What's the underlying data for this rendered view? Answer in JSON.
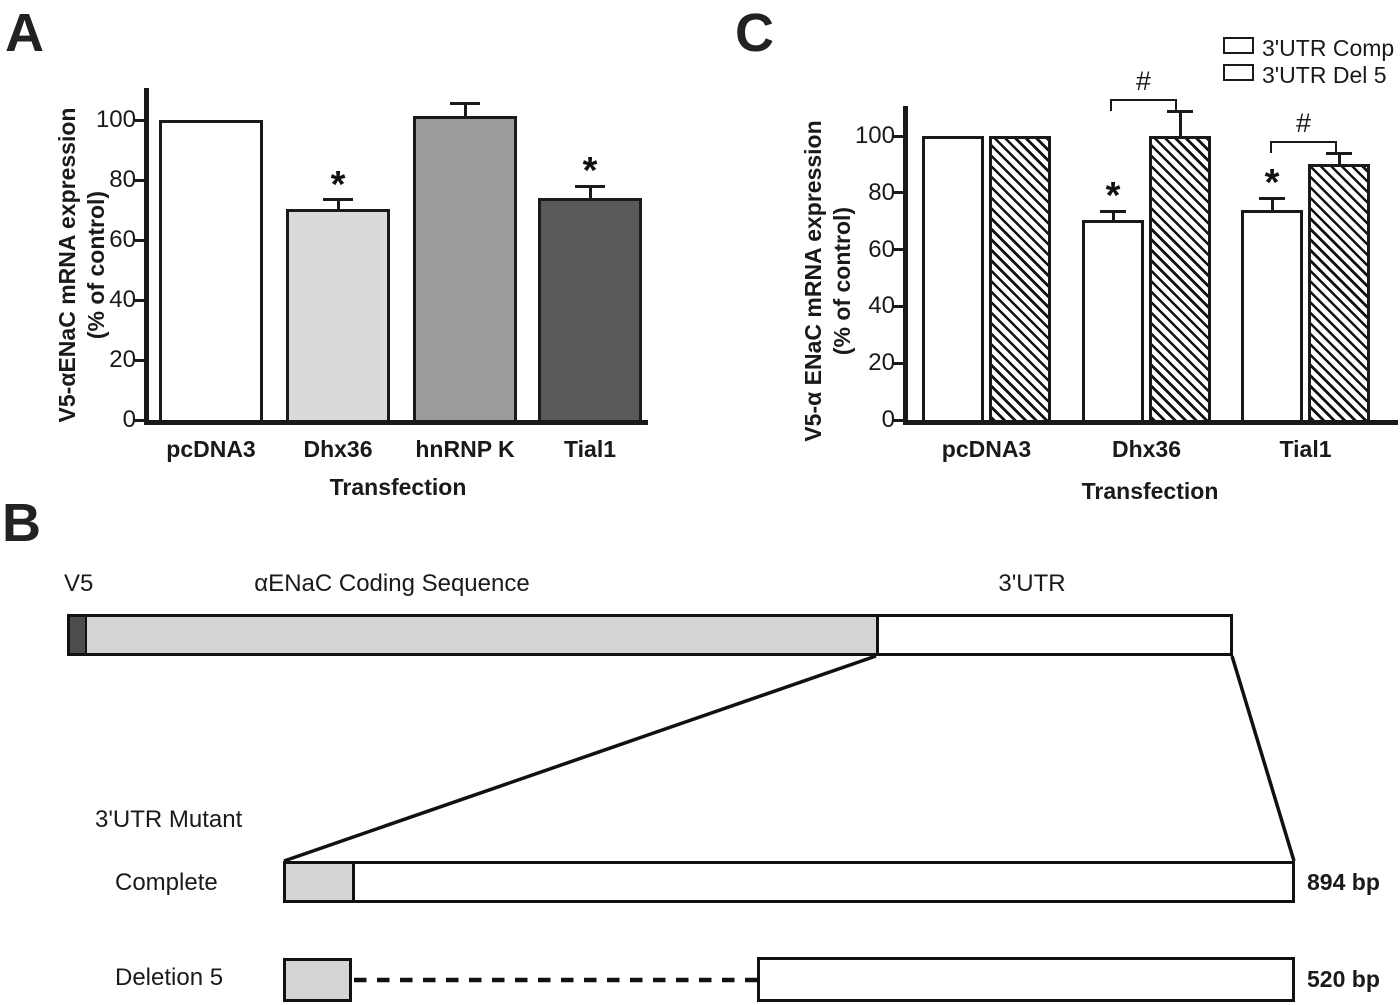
{
  "panels": {
    "a": "A",
    "b": "B",
    "c": "C"
  },
  "chart_data": [
    {
      "id": "A",
      "type": "bar",
      "categories": [
        "pcDNA3",
        "Dhx36",
        "hnRNP K",
        "Tial1"
      ],
      "values": [
        100,
        70.5,
        101.5,
        74
      ],
      "errors": [
        0,
        3,
        4,
        4
      ],
      "sig": [
        "",
        "*",
        "",
        "*"
      ],
      "bar_colors": [
        "#ffffff",
        "#dadada",
        "#9b9b9b",
        "#595959"
      ],
      "ylabel_line1": "V5-αENaC mRNA expression",
      "ylabel_line2": "(% of control)",
      "xlabel": "Transfection",
      "yticks": [
        0,
        20,
        40,
        60,
        80,
        100
      ],
      "ylim": [
        0,
        110
      ],
      "grid": false,
      "legend": "none"
    },
    {
      "id": "C",
      "type": "bar",
      "categories": [
        "pcDNA3",
        "Dhx36",
        "Tial1"
      ],
      "series": [
        {
          "name": "3'UTR Comp",
          "fill": "white",
          "values": [
            100,
            70.5,
            74
          ],
          "errors": [
            0,
            3,
            4
          ],
          "sig": [
            "",
            "*",
            "*"
          ]
        },
        {
          "name": "3'UTR Del 5",
          "fill": "hatch",
          "values": [
            100,
            100,
            90
          ],
          "errors": [
            0,
            8.5,
            4
          ],
          "sig": [
            "",
            "",
            ""
          ]
        }
      ],
      "comparisons": [
        {
          "between": [
            "Dhx36 3'UTR Comp",
            "Dhx36 3'UTR Del 5"
          ],
          "symbol": "#"
        },
        {
          "between": [
            "Tial1 3'UTR Comp",
            "Tial1 3'UTR Del 5"
          ],
          "symbol": "#"
        }
      ],
      "ylabel_line1": "V5-α ENaC mRNA expression",
      "ylabel_line2": "(% of control)",
      "xlabel": "Transfection",
      "yticks": [
        0,
        20,
        40,
        60,
        80,
        100
      ],
      "ylim": [
        0,
        110
      ],
      "grid": false,
      "legend_position": "top-right"
    }
  ],
  "panel_b": {
    "v5_label": "V5",
    "coding_label": "αENaC Coding Sequence",
    "utr_label": "3'UTR",
    "mutant_heading": "3'UTR Mutant",
    "rows": [
      {
        "label": "Complete",
        "size": "894 bp"
      },
      {
        "label": "Deletion 5",
        "size": "520 bp"
      }
    ]
  }
}
